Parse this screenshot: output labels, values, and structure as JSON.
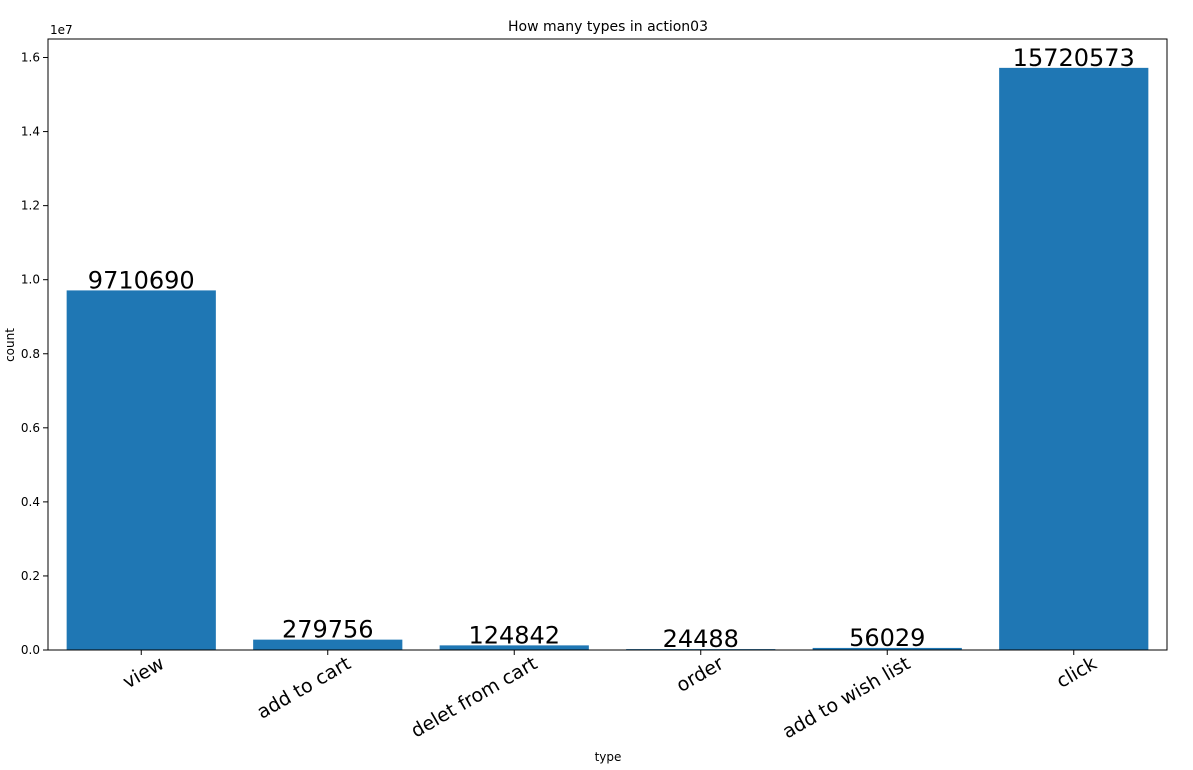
{
  "chart_data": {
    "type": "bar",
    "title": "How many types in action03",
    "xlabel": "type",
    "ylabel": "count",
    "y_offset_label": "1e7",
    "categories": [
      "view",
      "add to cart",
      "delet from cart",
      "order",
      "add to wish list",
      "click"
    ],
    "values": [
      9710690,
      279756,
      124842,
      24488,
      56029,
      15720573
    ],
    "data_labels": [
      "9710690",
      "279756",
      "124842",
      "24488",
      "56029",
      "15720573"
    ],
    "ylim": [
      0,
      16500000
    ],
    "yticks": [
      0,
      2000000,
      4000000,
      6000000,
      8000000,
      10000000,
      12000000,
      14000000,
      16000000
    ],
    "ytick_labels": [
      "0.0",
      "0.2",
      "0.4",
      "0.6",
      "0.8",
      "1.0",
      "1.2",
      "1.4",
      "1.6"
    ],
    "bar_color": "#1f77b4",
    "grid": false,
    "legend": "none"
  }
}
